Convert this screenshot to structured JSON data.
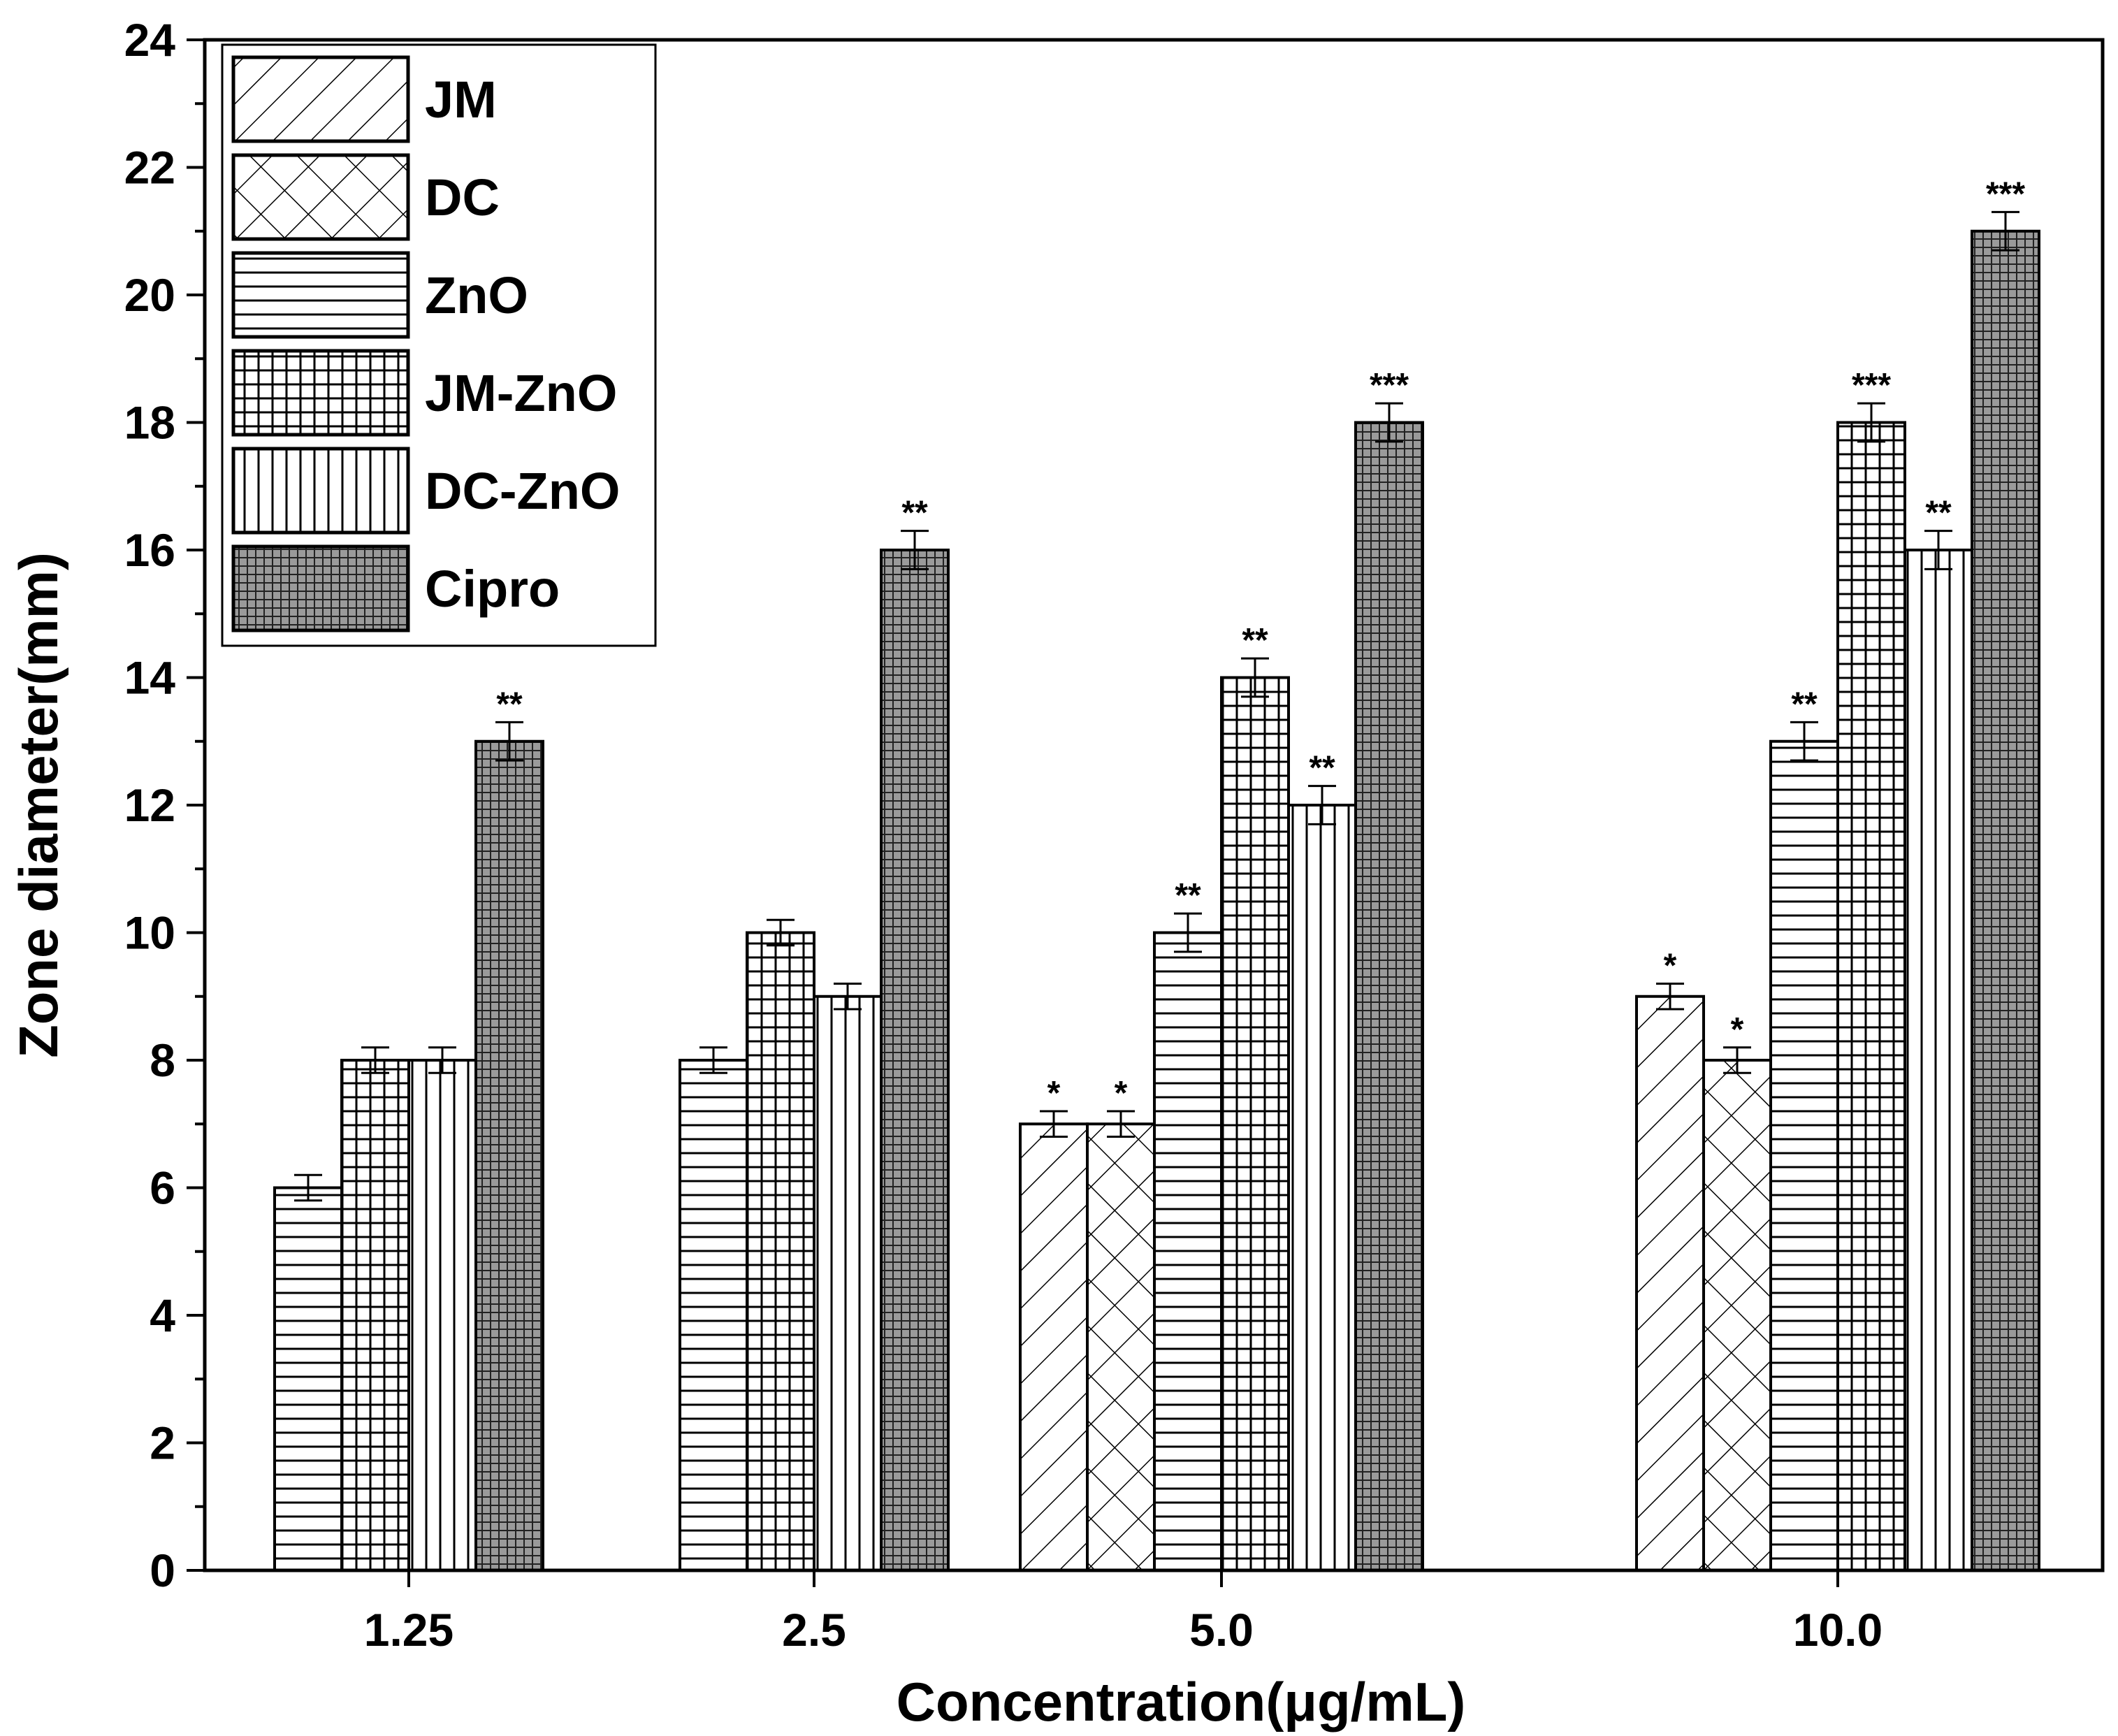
{
  "chart_data": {
    "type": "bar",
    "title": "",
    "xlabel": "Concentration(μg/mL)",
    "ylabel": "Zone diameter(mm)",
    "ylim": [
      0,
      24
    ],
    "yticks": [
      "0",
      "2",
      "4",
      "6",
      "8",
      "10",
      "12",
      "14",
      "16",
      "18",
      "20",
      "22",
      "24"
    ],
    "categories": [
      "1.25",
      "2.5",
      "5.0",
      "10.0"
    ],
    "legend_position": "top-left",
    "series": [
      {
        "name": "JM",
        "pattern": "diagonal",
        "values": [
          null,
          null,
          7,
          9
        ],
        "errors": [
          null,
          null,
          0.2,
          0.2
        ],
        "annotations": [
          null,
          null,
          "*",
          "*"
        ]
      },
      {
        "name": "DC",
        "pattern": "crosshatch",
        "values": [
          null,
          null,
          7,
          8
        ],
        "errors": [
          null,
          null,
          0.2,
          0.2
        ],
        "annotations": [
          null,
          null,
          "*",
          "*"
        ]
      },
      {
        "name": "ZnO",
        "pattern": "horizontal",
        "values": [
          6,
          8,
          10,
          13
        ],
        "errors": [
          0.2,
          0.2,
          0.3,
          0.3
        ],
        "annotations": [
          null,
          null,
          "**",
          "**"
        ]
      },
      {
        "name": "JM-ZnO",
        "pattern": "grid",
        "values": [
          8,
          10,
          14,
          18
        ],
        "errors": [
          0.2,
          0.2,
          0.3,
          0.3
        ],
        "annotations": [
          null,
          null,
          "**",
          "***"
        ]
      },
      {
        "name": "DC-ZnO",
        "pattern": "vertical",
        "values": [
          8,
          9,
          null,
          16
        ],
        "errors": [
          0.2,
          0.2,
          null,
          0.3
        ],
        "annotations": [
          null,
          null,
          null,
          "**"
        ]
      },
      {
        "name": "DC-ZnO",
        "pattern": "vertical",
        "values": [
          null,
          null,
          12,
          null
        ],
        "errors": [
          null,
          null,
          0.3,
          null
        ],
        "annotations": [
          null,
          null,
          "**",
          null
        ]
      },
      {
        "name": "Cipro",
        "pattern": "finegrid",
        "values": [
          13,
          16,
          18,
          21
        ],
        "errors": [
          0.3,
          0.3,
          0.3,
          0.3
        ],
        "annotations": [
          "**",
          "**",
          "***",
          "***"
        ]
      }
    ],
    "colors": {
      "fg": "#000000",
      "bg": "#ffffff",
      "cipro_fill": "#9a9a9a"
    }
  }
}
